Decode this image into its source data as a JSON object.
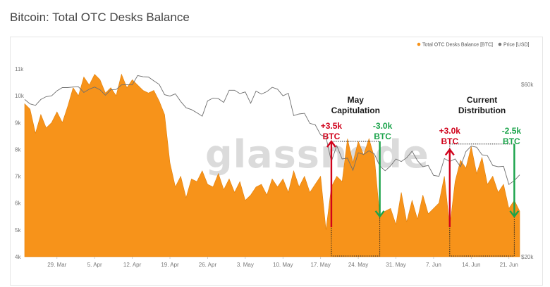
{
  "page": {
    "title": "Bitcoin: Total OTC Desks Balance"
  },
  "chart_data": {
    "type": "area",
    "title": "Bitcoin: Total OTC Desks Balance",
    "legend": [
      {
        "name": "Total OTC Desks Balance [BTC]",
        "color": "#f7931a",
        "marker": "dot"
      },
      {
        "name": "Price [USD]",
        "color": "#7a7a7a",
        "marker": "dot"
      }
    ],
    "legend_position": "top-right",
    "x_ticks": [
      "29. Mar",
      "5. Apr",
      "12. Apr",
      "19. Apr",
      "26. Apr",
      "3. May",
      "10. May",
      "17. May",
      "24. May",
      "31. May",
      "7. Jun",
      "14. Jun",
      "21. Jun"
    ],
    "x_start": "2021-03-23",
    "x_end": "2021-06-23",
    "y_left": {
      "ticks": [
        "4k",
        "5k",
        "6k",
        "7k",
        "8k",
        "9k",
        "10k",
        "11k"
      ],
      "range": [
        4000,
        11000
      ]
    },
    "y_right": {
      "ticks": [
        "$20k",
        "$60k"
      ],
      "scale": "log"
    },
    "grid": false,
    "series": [
      {
        "name": "Total OTC Desks Balance [BTC]",
        "axis": "left",
        "color": "#f7931a",
        "points": [
          [
            "2021-03-23",
            9700
          ],
          [
            "2021-03-24",
            9500
          ],
          [
            "2021-03-25",
            8600
          ],
          [
            "2021-03-26",
            9300
          ],
          [
            "2021-03-27",
            8800
          ],
          [
            "2021-03-28",
            9000
          ],
          [
            "2021-03-29",
            9400
          ],
          [
            "2021-03-30",
            9000
          ],
          [
            "2021-03-31",
            9600
          ],
          [
            "2021-04-01",
            10300
          ],
          [
            "2021-04-02",
            10000
          ],
          [
            "2021-04-03",
            10700
          ],
          [
            "2021-04-04",
            10400
          ],
          [
            "2021-04-05",
            10800
          ],
          [
            "2021-04-06",
            10600
          ],
          [
            "2021-04-07",
            10100
          ],
          [
            "2021-04-08",
            10300
          ],
          [
            "2021-04-09",
            10000
          ],
          [
            "2021-04-10",
            10800
          ],
          [
            "2021-04-11",
            10300
          ],
          [
            "2021-04-12",
            10600
          ],
          [
            "2021-04-13",
            10400
          ],
          [
            "2021-04-14",
            10200
          ],
          [
            "2021-04-15",
            10100
          ],
          [
            "2021-04-16",
            10200
          ],
          [
            "2021-04-17",
            9800
          ],
          [
            "2021-04-18",
            9300
          ],
          [
            "2021-04-19",
            7500
          ],
          [
            "2021-04-20",
            6600
          ],
          [
            "2021-04-21",
            7000
          ],
          [
            "2021-04-22",
            6200
          ],
          [
            "2021-04-23",
            6900
          ],
          [
            "2021-04-24",
            6800
          ],
          [
            "2021-04-25",
            7200
          ],
          [
            "2021-04-26",
            6700
          ],
          [
            "2021-04-27",
            6600
          ],
          [
            "2021-04-28",
            7100
          ],
          [
            "2021-04-29",
            6500
          ],
          [
            "2021-04-30",
            6900
          ],
          [
            "2021-05-01",
            6400
          ],
          [
            "2021-05-02",
            6800
          ],
          [
            "2021-05-03",
            6100
          ],
          [
            "2021-05-04",
            6300
          ],
          [
            "2021-05-05",
            6600
          ],
          [
            "2021-05-06",
            6700
          ],
          [
            "2021-05-07",
            6300
          ],
          [
            "2021-05-08",
            6900
          ],
          [
            "2021-05-09",
            6600
          ],
          [
            "2021-05-10",
            6900
          ],
          [
            "2021-05-11",
            6400
          ],
          [
            "2021-05-12",
            7200
          ],
          [
            "2021-05-13",
            6600
          ],
          [
            "2021-05-14",
            7000
          ],
          [
            "2021-05-15",
            6400
          ],
          [
            "2021-05-16",
            6700
          ],
          [
            "2021-05-17",
            7000
          ],
          [
            "2021-05-18",
            5000
          ],
          [
            "2021-05-19",
            6600
          ],
          [
            "2021-05-20",
            7000
          ],
          [
            "2021-05-21",
            6800
          ],
          [
            "2021-05-22",
            8400
          ],
          [
            "2021-05-23",
            7500
          ],
          [
            "2021-05-24",
            8300
          ],
          [
            "2021-05-25",
            7800
          ],
          [
            "2021-05-26",
            8400
          ],
          [
            "2021-05-27",
            7700
          ],
          [
            "2021-05-28",
            5500
          ],
          [
            "2021-05-29",
            5700
          ],
          [
            "2021-05-30",
            5800
          ],
          [
            "2021-05-31",
            5200
          ],
          [
            "2021-06-01",
            6400
          ],
          [
            "2021-06-02",
            5300
          ],
          [
            "2021-06-03",
            6100
          ],
          [
            "2021-06-04",
            5400
          ],
          [
            "2021-06-05",
            6300
          ],
          [
            "2021-06-06",
            5600
          ],
          [
            "2021-06-07",
            5800
          ],
          [
            "2021-06-08",
            6000
          ],
          [
            "2021-06-09",
            7000
          ],
          [
            "2021-06-10",
            5100
          ],
          [
            "2021-06-11",
            6800
          ],
          [
            "2021-06-12",
            7600
          ],
          [
            "2021-06-13",
            7300
          ],
          [
            "2021-06-14",
            8100
          ],
          [
            "2021-06-15",
            7100
          ],
          [
            "2021-06-16",
            7700
          ],
          [
            "2021-06-17",
            6700
          ],
          [
            "2021-06-18",
            7000
          ],
          [
            "2021-06-19",
            6400
          ],
          [
            "2021-06-20",
            6700
          ],
          [
            "2021-06-21",
            5800
          ],
          [
            "2021-06-22",
            6100
          ],
          [
            "2021-06-23",
            5700
          ]
        ]
      },
      {
        "name": "Price [USD]",
        "axis": "right",
        "color": "#6e6e6e",
        "points": [
          [
            "2021-03-23",
            54500
          ],
          [
            "2021-03-24",
            53000
          ],
          [
            "2021-03-25",
            52500
          ],
          [
            "2021-03-26",
            54500
          ],
          [
            "2021-03-27",
            55500
          ],
          [
            "2021-03-28",
            55800
          ],
          [
            "2021-03-29",
            57600
          ],
          [
            "2021-03-30",
            58800
          ],
          [
            "2021-03-31",
            58800
          ],
          [
            "2021-04-01",
            59000
          ],
          [
            "2021-04-02",
            59100
          ],
          [
            "2021-04-03",
            57000
          ],
          [
            "2021-04-04",
            58200
          ],
          [
            "2021-04-05",
            59000
          ],
          [
            "2021-04-06",
            58000
          ],
          [
            "2021-04-07",
            56000
          ],
          [
            "2021-04-08",
            58000
          ],
          [
            "2021-04-09",
            58100
          ],
          [
            "2021-04-10",
            59800
          ],
          [
            "2021-04-11",
            59900
          ],
          [
            "2021-04-12",
            59800
          ],
          [
            "2021-04-13",
            63500
          ],
          [
            "2021-04-14",
            63000
          ],
          [
            "2021-04-15",
            62900
          ],
          [
            "2021-04-16",
            61400
          ],
          [
            "2021-04-17",
            60000
          ],
          [
            "2021-04-18",
            56200
          ],
          [
            "2021-04-19",
            55700
          ],
          [
            "2021-04-20",
            56500
          ],
          [
            "2021-04-21",
            53800
          ],
          [
            "2021-04-22",
            51700
          ],
          [
            "2021-04-23",
            51100
          ],
          [
            "2021-04-24",
            50100
          ],
          [
            "2021-04-25",
            49000
          ],
          [
            "2021-04-26",
            54000
          ],
          [
            "2021-04-27",
            55000
          ],
          [
            "2021-04-28",
            54800
          ],
          [
            "2021-04-29",
            53500
          ],
          [
            "2021-04-30",
            57800
          ],
          [
            "2021-05-01",
            57800
          ],
          [
            "2021-05-02",
            56600
          ],
          [
            "2021-05-03",
            57200
          ],
          [
            "2021-05-04",
            53200
          ],
          [
            "2021-05-05",
            57500
          ],
          [
            "2021-05-06",
            56400
          ],
          [
            "2021-05-07",
            57300
          ],
          [
            "2021-05-08",
            58900
          ],
          [
            "2021-05-09",
            58200
          ],
          [
            "2021-05-10",
            55800
          ],
          [
            "2021-05-11",
            56700
          ],
          [
            "2021-05-12",
            49200
          ],
          [
            "2021-05-13",
            49700
          ],
          [
            "2021-05-14",
            49900
          ],
          [
            "2021-05-15",
            46800
          ],
          [
            "2021-05-16",
            46400
          ],
          [
            "2021-05-17",
            43500
          ],
          [
            "2021-05-18",
            42900
          ],
          [
            "2021-05-19",
            36700
          ],
          [
            "2021-05-20",
            40600
          ],
          [
            "2021-05-21",
            37300
          ],
          [
            "2021-05-22",
            37500
          ],
          [
            "2021-05-23",
            34700
          ],
          [
            "2021-05-24",
            38800
          ],
          [
            "2021-05-25",
            38400
          ],
          [
            "2021-05-26",
            39300
          ],
          [
            "2021-05-27",
            38500
          ],
          [
            "2021-05-28",
            35700
          ],
          [
            "2021-05-29",
            34600
          ],
          [
            "2021-05-30",
            35700
          ],
          [
            "2021-05-31",
            37300
          ],
          [
            "2021-06-01",
            36700
          ],
          [
            "2021-06-02",
            37600
          ],
          [
            "2021-06-03",
            39200
          ],
          [
            "2021-06-04",
            36900
          ],
          [
            "2021-06-05",
            35500
          ],
          [
            "2021-06-06",
            35800
          ],
          [
            "2021-06-07",
            33600
          ],
          [
            "2021-06-08",
            33400
          ],
          [
            "2021-06-09",
            37400
          ],
          [
            "2021-06-10",
            36700
          ],
          [
            "2021-06-11",
            37300
          ],
          [
            "2021-06-12",
            35500
          ],
          [
            "2021-06-13",
            39100
          ],
          [
            "2021-06-14",
            40500
          ],
          [
            "2021-06-15",
            40200
          ],
          [
            "2021-06-16",
            38300
          ],
          [
            "2021-06-17",
            38100
          ],
          [
            "2021-06-18",
            35800
          ],
          [
            "2021-06-19",
            35500
          ],
          [
            "2021-06-20",
            35600
          ],
          [
            "2021-06-21",
            31700
          ],
          [
            "2021-06-22",
            32500
          ],
          [
            "2021-06-23",
            33700
          ]
        ]
      }
    ],
    "annotations": [
      {
        "type": "label",
        "lines": [
          "May",
          "Capitulation"
        ],
        "color": "#1a1a1a"
      },
      {
        "type": "label",
        "lines": [
          "Current",
          "Distribution"
        ],
        "color": "#1a1a1a"
      },
      {
        "type": "change",
        "lines": [
          "+3.5k",
          "BTC"
        ],
        "value": 3500,
        "unit": "BTC",
        "color": "#d0021b",
        "direction": "up"
      },
      {
        "type": "change",
        "lines": [
          "-3.0k",
          "BTC"
        ],
        "value": -3000,
        "unit": "BTC",
        "color": "#1aa34a",
        "direction": "down"
      },
      {
        "type": "change",
        "lines": [
          "+3.0k",
          "BTC"
        ],
        "value": 3000,
        "unit": "BTC",
        "color": "#d0021b",
        "direction": "up"
      },
      {
        "type": "change",
        "lines": [
          "-2.5k",
          "BTC"
        ],
        "value": -2500,
        "unit": "BTC",
        "color": "#1aa34a",
        "direction": "down"
      }
    ],
    "highlight_boxes": [
      {
        "x_from": "2021-05-19",
        "x_to": "2021-05-28",
        "y_from": 4000,
        "y_to": 8300
      },
      {
        "x_from": "2021-06-10",
        "x_to": "2021-06-22",
        "y_from": 4000,
        "y_to": 8200
      }
    ],
    "watermark": "glassnode"
  }
}
